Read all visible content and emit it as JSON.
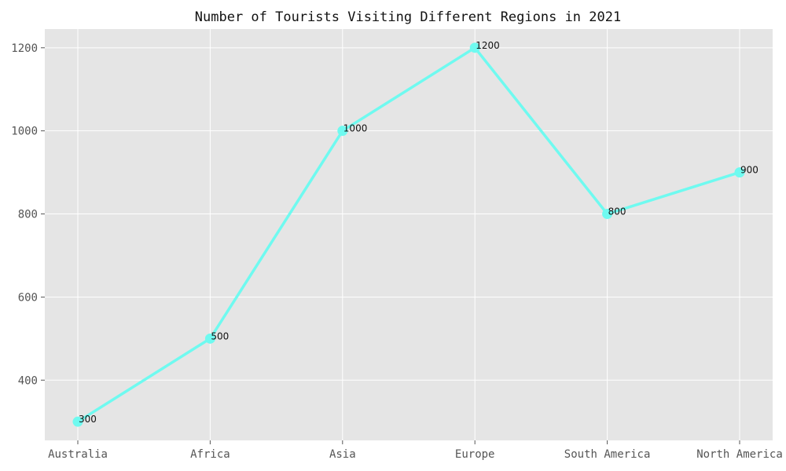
{
  "chart_data": {
    "type": "line",
    "title": "Number of Tourists Visiting Different Regions in 2021",
    "xlabel": "",
    "ylabel": "",
    "categories": [
      "Australia",
      "Africa",
      "Asia",
      "Europe",
      "South America",
      "North America"
    ],
    "series": [
      {
        "values": [
          300,
          500,
          1000,
          1200,
          800,
          900
        ],
        "color": "#6ffaf0"
      }
    ],
    "data_labels": [
      "300",
      "500",
      "1000",
      "1200",
      "800",
      "900"
    ],
    "yticks": [
      400,
      600,
      800,
      1000,
      1200
    ],
    "ylim": [
      255,
      1245
    ],
    "grid": true,
    "legend": "none",
    "background_color": "#e5e5e5",
    "grid_color": "#ffffff"
  }
}
